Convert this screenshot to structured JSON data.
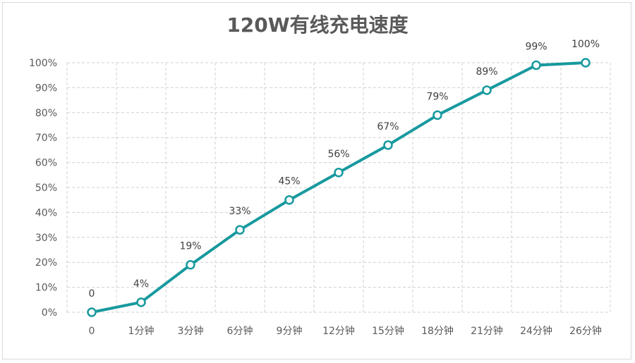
{
  "chart_data": {
    "type": "line",
    "title": "120W有线充电速度",
    "xlabel": "",
    "ylabel": "",
    "categories": [
      "0",
      "1分钟",
      "3分钟",
      "6分钟",
      "9分钟",
      "12分钟",
      "15分钟",
      "18分钟",
      "21分钟",
      "24分钟",
      "26分钟"
    ],
    "series": [
      {
        "values": [
          0,
          4,
          19,
          33,
          45,
          56,
          67,
          79,
          89,
          99,
          100
        ],
        "data_labels": [
          "0",
          "4%",
          "19%",
          "33%",
          "45%",
          "56%",
          "67%",
          "79%",
          "89%",
          "99%",
          "100%"
        ]
      }
    ],
    "ylim": [
      0,
      100
    ],
    "y_ticks": [
      "0%",
      "10%",
      "20%",
      "30%",
      "40%",
      "50%",
      "60%",
      "70%",
      "80%",
      "90%",
      "100%"
    ],
    "grid": true,
    "grid_style": "dashed",
    "line_color": "#17999e",
    "marker": "hollow-circle"
  }
}
